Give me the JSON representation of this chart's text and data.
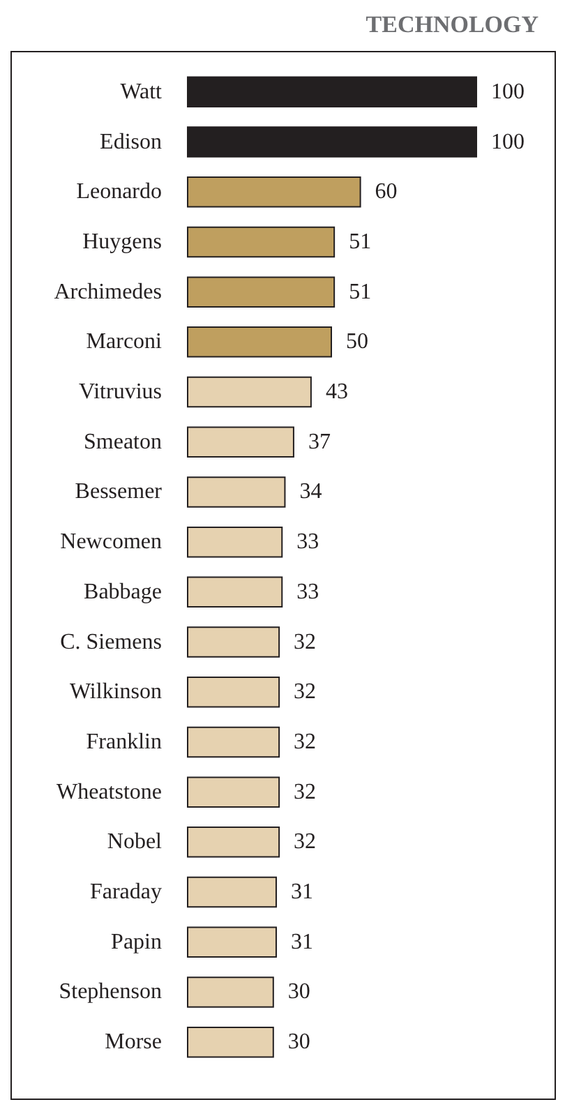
{
  "chart_data": {
    "type": "bar",
    "orientation": "horizontal",
    "title": "TECHNOLOGY",
    "categories": [
      "Watt",
      "Edison",
      "Leonardo",
      "Huygens",
      "Archimedes",
      "Marconi",
      "Vitruvius",
      "Smeaton",
      "Bessemer",
      "Newcomen",
      "Babbage",
      "C. Siemens",
      "Wilkinson",
      "Franklin",
      "Wheatstone",
      "Nobel",
      "Faraday",
      "Papin",
      "Stephenson",
      "Morse"
    ],
    "values": [
      100,
      100,
      60,
      51,
      51,
      50,
      43,
      37,
      34,
      33,
      33,
      32,
      32,
      32,
      32,
      32,
      31,
      31,
      30,
      30
    ],
    "colors": [
      "#231f20",
      "#231f20",
      "#bf9f5f",
      "#bf9f5f",
      "#bf9f5f",
      "#bf9f5f",
      "#e6d2b0",
      "#e6d2b0",
      "#e6d2b0",
      "#e6d2b0",
      "#e6d2b0",
      "#e6d2b0",
      "#e6d2b0",
      "#e6d2b0",
      "#e6d2b0",
      "#e6d2b0",
      "#e6d2b0",
      "#e6d2b0",
      "#e6d2b0",
      "#e6d2b0"
    ],
    "data_labels": true
  }
}
